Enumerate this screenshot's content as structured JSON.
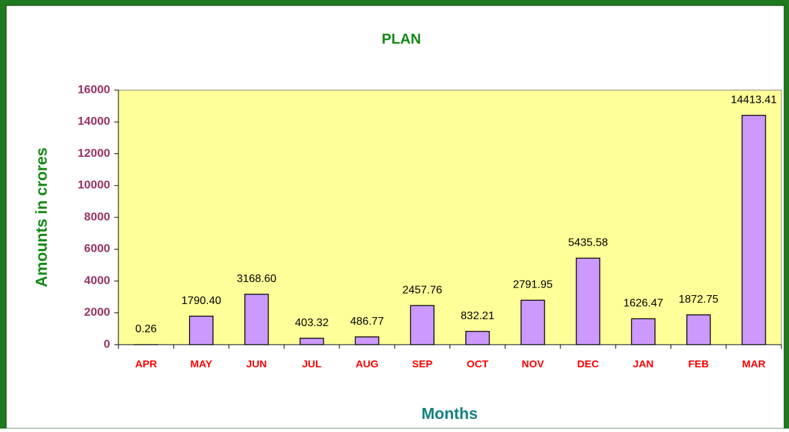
{
  "chart_data": {
    "type": "bar",
    "title": "PLAN",
    "x_label": "Months",
    "y_label": "Amounts in crores",
    "categories": [
      "APR",
      "MAY",
      "JUN",
      "JUL",
      "AUG",
      "SEP",
      "OCT",
      "NOV",
      "DEC",
      "JAN",
      "FEB",
      "MAR"
    ],
    "values": [
      0.26,
      1790.4,
      3168.6,
      403.32,
      486.77,
      2457.76,
      832.21,
      2791.95,
      5435.58,
      1626.47,
      1872.75,
      14413.41
    ],
    "value_labels": [
      "0.26",
      "1790.40",
      "3168.60",
      "403.32",
      "486.77",
      "2457.76",
      "832.21",
      "2791.95",
      "5435.58",
      "1626.47",
      "1872.75",
      "14413.41"
    ],
    "color": "#cc99ff",
    "ylim": [
      0,
      16000
    ],
    "yticks": [
      0,
      2000,
      4000,
      6000,
      8000,
      10000,
      12000,
      14000,
      16000
    ]
  }
}
